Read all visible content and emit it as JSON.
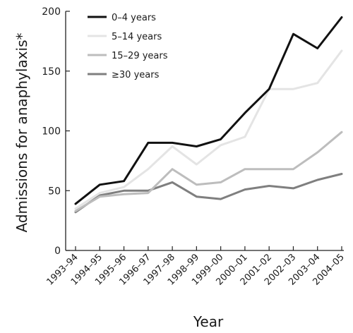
{
  "chart_data": {
    "type": "line",
    "title": "",
    "xlabel": "Year",
    "ylabel": "Admissions for anaphylaxis*",
    "ylim": [
      0,
      200
    ],
    "yticks": [
      0,
      50,
      100,
      150,
      200
    ],
    "grid": false,
    "legend_position": "top-left",
    "categories": [
      "1993–94",
      "1994–95",
      "1995–96",
      "1996–97",
      "1997–98",
      "1998–99",
      "1999–00",
      "2000–01",
      "2001–02",
      "2002–03",
      "2003–04",
      "2004–05"
    ],
    "series": [
      {
        "name": "0–4 years",
        "color": "#111111",
        "values": [
          39,
          55,
          58,
          90,
          90,
          87,
          93,
          115,
          135,
          181,
          169,
          195
        ]
      },
      {
        "name": "5–14 years",
        "color": "#e4e4e4",
        "values": [
          35,
          48,
          53,
          68,
          87,
          72,
          88,
          95,
          135,
          135,
          140,
          167
        ]
      },
      {
        "name": "15–29 years",
        "color": "#bdbdbd",
        "values": [
          33,
          45,
          47,
          48,
          68,
          55,
          57,
          68,
          68,
          68,
          82,
          99
        ]
      },
      {
        "name": "≥30 years",
        "color": "#7f7f7f",
        "values": [
          32,
          46,
          50,
          50,
          57,
          45,
          43,
          51,
          54,
          52,
          59,
          64
        ]
      }
    ]
  }
}
